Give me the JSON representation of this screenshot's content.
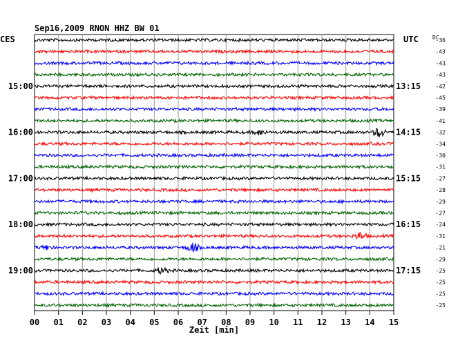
{
  "chart_data": {
    "type": "line",
    "title": "Sep16,2009   RNON HHZ BW 01",
    "left_timezone": "CES",
    "right_timezone": "UTC",
    "dc_header": "DC",
    "xlabel": "Zeit [min]",
    "xlim": [
      0,
      15
    ],
    "x_ticks": [
      "00",
      "01",
      "02",
      "03",
      "04",
      "05",
      "06",
      "07",
      "08",
      "09",
      "10",
      "11",
      "12",
      "13",
      "14",
      "15"
    ],
    "trace_colors": [
      "#000000",
      "#ff0000",
      "#0000ff",
      "#006400"
    ],
    "left_time_labels": [
      {
        "trace": 0,
        "label": ""
      },
      {
        "trace": 4,
        "label": "15:00"
      },
      {
        "trace": 8,
        "label": "16:00"
      },
      {
        "trace": 12,
        "label": "17:00"
      },
      {
        "trace": 16,
        "label": "18:00"
      },
      {
        "trace": 20,
        "label": "19:00"
      }
    ],
    "right_time_labels": [
      {
        "trace": 4,
        "label": "13:15"
      },
      {
        "trace": 8,
        "label": "14:15"
      },
      {
        "trace": 12,
        "label": "15:15"
      },
      {
        "trace": 16,
        "label": "16:15"
      },
      {
        "trace": 20,
        "label": "17:15"
      }
    ],
    "dc_values": [
      "-36",
      "-43",
      "-43",
      "-43",
      "-42",
      "-45",
      "-39",
      "-41",
      "-32",
      "-34",
      "-30",
      "-31",
      "-27",
      "-28",
      "-29",
      "-27",
      "-24",
      "-31",
      "-21",
      "-29",
      "-25",
      "-25",
      "-25",
      "-25"
    ],
    "events": [
      {
        "trace": 8,
        "minute": 9.4,
        "amplitude": 1.8
      },
      {
        "trace": 8,
        "minute": 14.4,
        "amplitude": 3.5
      },
      {
        "trace": 17,
        "minute": 13.6,
        "amplitude": 2.5
      },
      {
        "trace": 18,
        "minute": 0.5,
        "amplitude": 1.6
      },
      {
        "trace": 18,
        "minute": 6.6,
        "amplitude": 3.2
      },
      {
        "trace": 20,
        "minute": 5.3,
        "amplitude": 2.2
      }
    ]
  }
}
